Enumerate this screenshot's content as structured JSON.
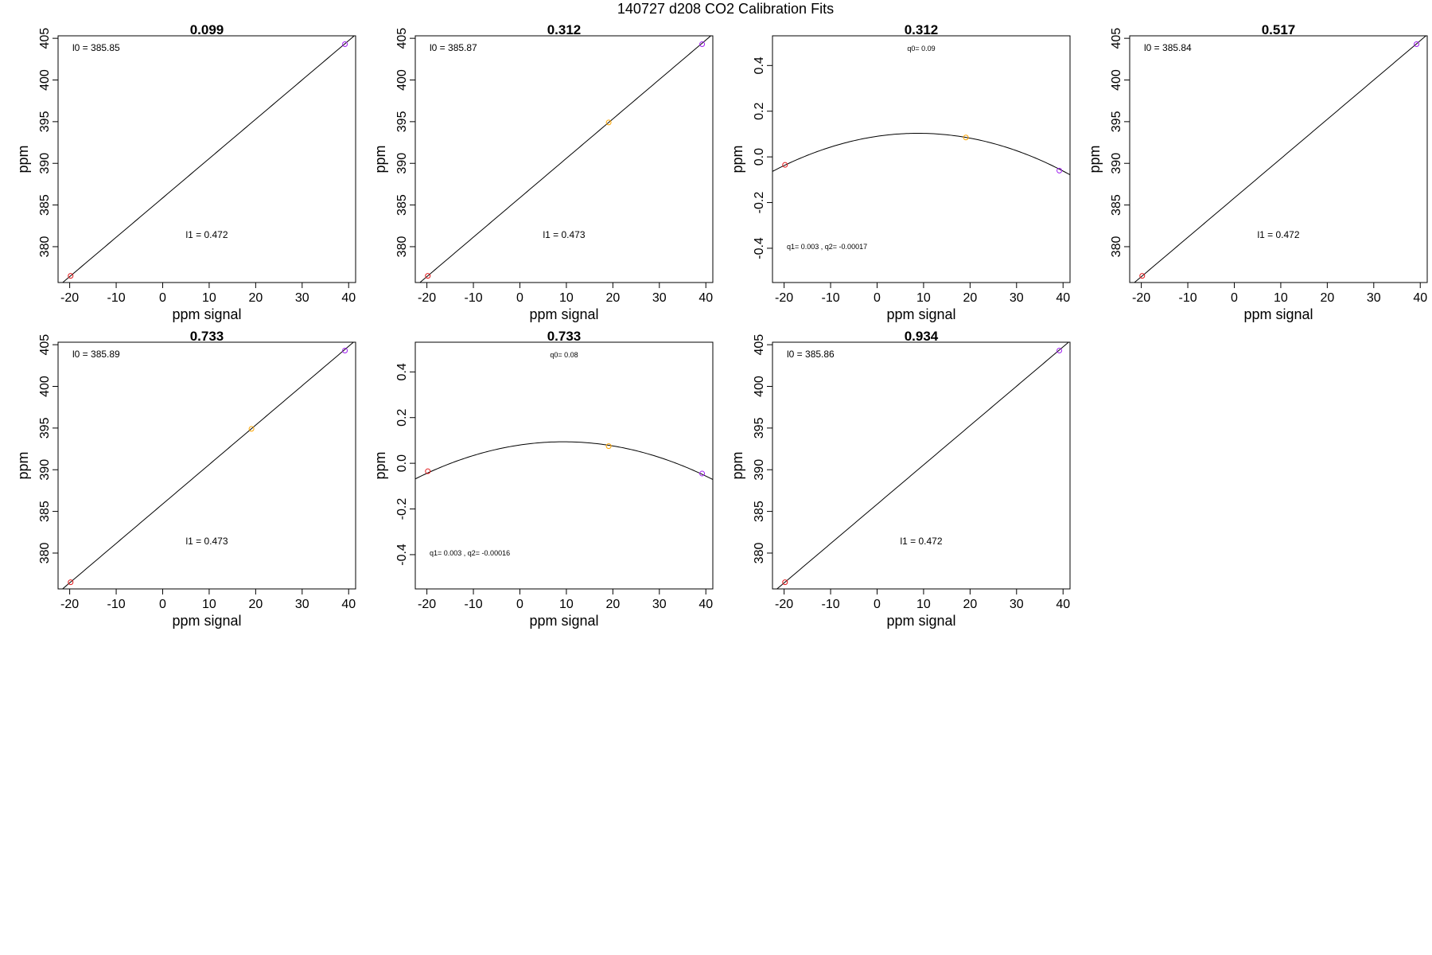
{
  "figure": {
    "title": "140727   d208   CO2 Calibration Fits"
  },
  "chart_data": [
    {
      "type": "scatter",
      "title": "0.099",
      "xlabel": "ppm signal",
      "ylabel": "ppm",
      "xlim": [
        -22.5,
        41.5
      ],
      "ylim": [
        375.7,
        405.3
      ],
      "xticks": [
        "-20",
        "-10",
        "0",
        "10",
        "20",
        "30",
        "40"
      ],
      "yticks": [
        "380",
        "385",
        "390",
        "395",
        "400",
        "405"
      ],
      "fit": {
        "kind": "linear",
        "a": 385.85,
        "b": 0.472
      },
      "points": [
        {
          "x": -19.8,
          "y": 376.5,
          "color": "#e31a1c"
        },
        {
          "x": 39.2,
          "y": 404.3,
          "color": "#a020f0"
        }
      ],
      "annotations": [
        {
          "text": "l0 =  385.85",
          "pos": "top-left"
        },
        {
          "text": "l1 =  0.472",
          "pos": "bottom-center"
        }
      ]
    },
    {
      "type": "scatter",
      "title": "0.312",
      "xlabel": "ppm signal",
      "ylabel": "ppm",
      "xlim": [
        -22.5,
        41.5
      ],
      "ylim": [
        375.7,
        405.3
      ],
      "xticks": [
        "-20",
        "-10",
        "0",
        "10",
        "20",
        "30",
        "40"
      ],
      "yticks": [
        "380",
        "385",
        "390",
        "395",
        "400",
        "405"
      ],
      "fit": {
        "kind": "linear",
        "a": 385.87,
        "b": 0.473
      },
      "points": [
        {
          "x": -19.8,
          "y": 376.5,
          "color": "#e31a1c"
        },
        {
          "x": 19.1,
          "y": 394.9,
          "color": "#ffa500"
        },
        {
          "x": 39.2,
          "y": 404.3,
          "color": "#a020f0"
        }
      ],
      "annotations": [
        {
          "text": "l0 =  385.87",
          "pos": "top-left"
        },
        {
          "text": "l1 =  0.473",
          "pos": "bottom-center"
        }
      ]
    },
    {
      "type": "scatter",
      "title": "0.312",
      "xlabel": "ppm signal",
      "ylabel": "ppm",
      "xlim": [
        -22.5,
        41.5
      ],
      "ylim": [
        -0.55,
        0.53
      ],
      "xticks": [
        "-20",
        "-10",
        "0",
        "10",
        "20",
        "30",
        "40"
      ],
      "yticks": [
        "-0.4",
        "-0.2",
        "0.0",
        "0.2",
        "0.4"
      ],
      "fit": {
        "kind": "quadratic",
        "a": 0.09,
        "b": 0.003,
        "c": -0.00017
      },
      "points": [
        {
          "x": -19.8,
          "y": -0.035,
          "color": "#e31a1c"
        },
        {
          "x": 19.1,
          "y": 0.085,
          "color": "#ffa500"
        },
        {
          "x": 39.2,
          "y": -0.06,
          "color": "#a020f0"
        }
      ],
      "annotations": [
        {
          "text": "q0= 0.09",
          "pos": "top-center",
          "small": true
        },
        {
          "text": "q1= 0.003 , q2= -0.00017",
          "pos": "bottom-left",
          "small": true
        }
      ]
    },
    {
      "type": "scatter",
      "title": "0.517",
      "xlabel": "ppm signal",
      "ylabel": "ppm",
      "xlim": [
        -22.5,
        41.5
      ],
      "ylim": [
        375.7,
        405.3
      ],
      "xticks": [
        "-20",
        "-10",
        "0",
        "10",
        "20",
        "30",
        "40"
      ],
      "yticks": [
        "380",
        "385",
        "390",
        "395",
        "400",
        "405"
      ],
      "fit": {
        "kind": "linear",
        "a": 385.84,
        "b": 0.472
      },
      "points": [
        {
          "x": -19.8,
          "y": 376.5,
          "color": "#e31a1c"
        },
        {
          "x": 39.2,
          "y": 404.3,
          "color": "#a020f0"
        }
      ],
      "annotations": [
        {
          "text": "l0 =  385.84",
          "pos": "top-left"
        },
        {
          "text": "l1 =  0.472",
          "pos": "bottom-center"
        }
      ]
    },
    {
      "type": "scatter",
      "title": "0.733",
      "xlabel": "ppm signal",
      "ylabel": "ppm",
      "xlim": [
        -22.5,
        41.5
      ],
      "ylim": [
        375.7,
        405.3
      ],
      "xticks": [
        "-20",
        "-10",
        "0",
        "10",
        "20",
        "30",
        "40"
      ],
      "yticks": [
        "380",
        "385",
        "390",
        "395",
        "400",
        "405"
      ],
      "fit": {
        "kind": "linear",
        "a": 385.89,
        "b": 0.473
      },
      "points": [
        {
          "x": -19.8,
          "y": 376.5,
          "color": "#e31a1c"
        },
        {
          "x": 19.1,
          "y": 394.9,
          "color": "#ffa500"
        },
        {
          "x": 39.2,
          "y": 404.3,
          "color": "#a020f0"
        }
      ],
      "annotations": [
        {
          "text": "l0 =  385.89",
          "pos": "top-left"
        },
        {
          "text": "l1 =  0.473",
          "pos": "bottom-center"
        }
      ]
    },
    {
      "type": "scatter",
      "title": "0.733",
      "xlabel": "ppm signal",
      "ylabel": "ppm",
      "xlim": [
        -22.5,
        41.5
      ],
      "ylim": [
        -0.55,
        0.53
      ],
      "xticks": [
        "-20",
        "-10",
        "0",
        "10",
        "20",
        "30",
        "40"
      ],
      "yticks": [
        "-0.4",
        "-0.2",
        "0.0",
        "0.2",
        "0.4"
      ],
      "fit": {
        "kind": "quadratic",
        "a": 0.08,
        "b": 0.003,
        "c": -0.00016
      },
      "points": [
        {
          "x": -19.8,
          "y": -0.035,
          "color": "#e31a1c"
        },
        {
          "x": 19.1,
          "y": 0.075,
          "color": "#ffa500"
        },
        {
          "x": 39.2,
          "y": -0.045,
          "color": "#a020f0"
        }
      ],
      "annotations": [
        {
          "text": "q0= 0.08",
          "pos": "top-center",
          "small": true
        },
        {
          "text": "q1= 0.003 , q2= -0.00016",
          "pos": "bottom-left",
          "small": true
        }
      ]
    },
    {
      "type": "scatter",
      "title": "0.934",
      "xlabel": "ppm signal",
      "ylabel": "ppm",
      "xlim": [
        -22.5,
        41.5
      ],
      "ylim": [
        375.7,
        405.3
      ],
      "xticks": [
        "-20",
        "-10",
        "0",
        "10",
        "20",
        "30",
        "40"
      ],
      "yticks": [
        "380",
        "385",
        "390",
        "395",
        "400",
        "405"
      ],
      "fit": {
        "kind": "linear",
        "a": 385.86,
        "b": 0.472
      },
      "points": [
        {
          "x": -19.8,
          "y": 376.5,
          "color": "#e31a1c"
        },
        {
          "x": 39.2,
          "y": 404.3,
          "color": "#a020f0"
        }
      ],
      "annotations": [
        {
          "text": "l0 =  385.86",
          "pos": "top-left"
        },
        {
          "text": "l1 =  0.472",
          "pos": "bottom-center"
        }
      ]
    }
  ]
}
